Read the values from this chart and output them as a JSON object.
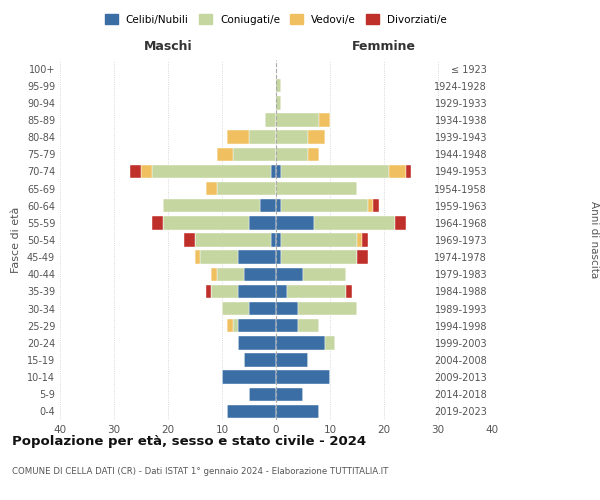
{
  "age_groups": [
    "0-4",
    "5-9",
    "10-14",
    "15-19",
    "20-24",
    "25-29",
    "30-34",
    "35-39",
    "40-44",
    "45-49",
    "50-54",
    "55-59",
    "60-64",
    "65-69",
    "70-74",
    "75-79",
    "80-84",
    "85-89",
    "90-94",
    "95-99",
    "100+"
  ],
  "birth_years": [
    "2019-2023",
    "2014-2018",
    "2009-2013",
    "2004-2008",
    "1999-2003",
    "1994-1998",
    "1989-1993",
    "1984-1988",
    "1979-1983",
    "1974-1978",
    "1969-1973",
    "1964-1968",
    "1959-1963",
    "1954-1958",
    "1949-1953",
    "1944-1948",
    "1939-1943",
    "1934-1938",
    "1929-1933",
    "1924-1928",
    "≤ 1923"
  ],
  "colors": {
    "celibi": "#3a6ea5",
    "coniugati": "#c5d6a0",
    "vedovi": "#f0c060",
    "divorziati": "#c0302a"
  },
  "maschi": {
    "celibi": [
      9,
      5,
      10,
      6,
      7,
      7,
      5,
      7,
      6,
      7,
      1,
      5,
      3,
      0,
      1,
      0,
      0,
      0,
      0,
      0,
      0
    ],
    "coniugati": [
      0,
      0,
      0,
      0,
      0,
      1,
      5,
      5,
      5,
      7,
      14,
      16,
      18,
      11,
      22,
      8,
      5,
      2,
      0,
      0,
      0
    ],
    "vedovi": [
      0,
      0,
      0,
      0,
      0,
      1,
      0,
      0,
      1,
      1,
      0,
      0,
      0,
      2,
      2,
      3,
      4,
      0,
      0,
      0,
      0
    ],
    "divorziati": [
      0,
      0,
      0,
      0,
      0,
      0,
      0,
      1,
      0,
      0,
      2,
      2,
      0,
      0,
      2,
      0,
      0,
      0,
      0,
      0,
      0
    ]
  },
  "femmine": {
    "celibi": [
      8,
      5,
      10,
      6,
      9,
      4,
      4,
      2,
      5,
      1,
      1,
      7,
      1,
      0,
      1,
      0,
      0,
      0,
      0,
      0,
      0
    ],
    "coniugati": [
      0,
      0,
      0,
      0,
      2,
      4,
      11,
      11,
      8,
      14,
      14,
      15,
      16,
      15,
      20,
      6,
      6,
      8,
      1,
      1,
      0
    ],
    "vedovi": [
      0,
      0,
      0,
      0,
      0,
      0,
      0,
      0,
      0,
      0,
      1,
      0,
      1,
      0,
      3,
      2,
      3,
      2,
      0,
      0,
      0
    ],
    "divorziati": [
      0,
      0,
      0,
      0,
      0,
      0,
      0,
      1,
      0,
      2,
      1,
      2,
      1,
      0,
      1,
      0,
      0,
      0,
      0,
      0,
      0
    ]
  },
  "xlim": 40,
  "title": "Popolazione per età, sesso e stato civile - 2024",
  "subtitle": "COMUNE DI CELLA DATI (CR) - Dati ISTAT 1° gennaio 2024 - Elaborazione TUTTITALIA.IT",
  "ylabel_left": "Fasce di età",
  "ylabel_right": "Anni di nascita",
  "xlabel_maschi": "Maschi",
  "xlabel_femmine": "Femmine",
  "legend_labels": [
    "Celibi/Nubili",
    "Coniugati/e",
    "Vedovi/e",
    "Divorziati/e"
  ],
  "background_color": "#ffffff",
  "grid_color": "#cccccc",
  "text_color": "#555555"
}
